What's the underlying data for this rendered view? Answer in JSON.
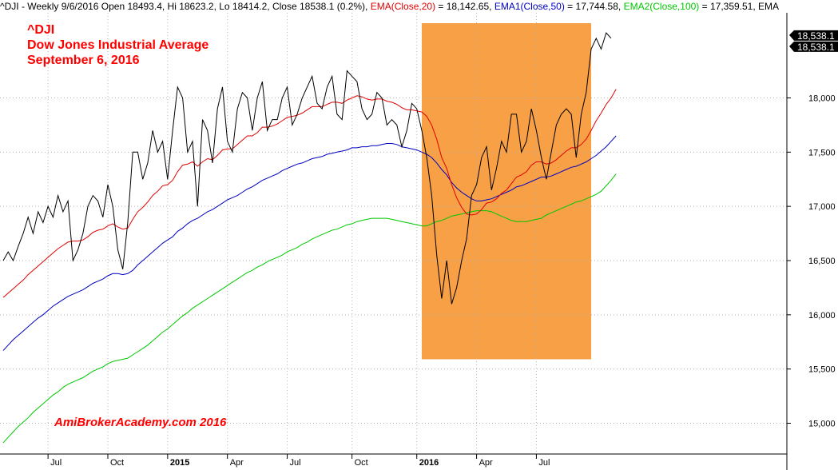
{
  "header": {
    "symbol_info": "^DJI - Weekly 9/6/2016 Open 18493.4, Hi 18623.2, Lo 18414.2, Close 18538.1 (0.2%)",
    "ema20_label": "EMA(Close,20)",
    "ema20_value": " = 18,142.65, ",
    "ema50_label": "EMA1(Close,50)",
    "ema50_value": " = 17,744.58, ",
    "ema100_label": "EMA2(Close,100)",
    "ema100_value": " = 17,359.51, EMA"
  },
  "chart_data": {
    "type": "line",
    "title_lines": [
      "^DJI",
      "Dow Jones Industrial Average",
      "September 6, 2016"
    ],
    "watermark": "AmiBrokerAcademy.com  2016",
    "price_labels": [
      "18,538.1",
      "18,538.1"
    ],
    "ylim": [
      14800,
      18700
    ],
    "y_ticks": [
      {
        "value": 15000,
        "label": "15,000"
      },
      {
        "value": 15500,
        "label": "15,500"
      },
      {
        "value": 16000,
        "label": "16,000"
      },
      {
        "value": 16500,
        "label": "16,500"
      },
      {
        "value": 17000,
        "label": "17,000"
      },
      {
        "value": 17500,
        "label": "17,500"
      },
      {
        "value": 18000,
        "label": "18,000"
      }
    ],
    "x_range": [
      0,
      123
    ],
    "x_ticks": [
      {
        "index": 9,
        "label": "Jul",
        "bold": false
      },
      {
        "index": 21,
        "label": "Oct",
        "bold": false
      },
      {
        "index": 33,
        "label": "2015",
        "bold": true
      },
      {
        "index": 45,
        "label": "Apr",
        "bold": false
      },
      {
        "index": 57,
        "label": "Jul",
        "bold": false
      },
      {
        "index": 70,
        "label": "Oct",
        "bold": false
      },
      {
        "index": 83,
        "label": "2016",
        "bold": true
      },
      {
        "index": 95,
        "label": "Apr",
        "bold": false
      },
      {
        "index": 107,
        "label": "Jul",
        "bold": false
      }
    ],
    "highlight": {
      "x_start": 84,
      "x_end": 118,
      "y_low": 15590,
      "y_high": 18700,
      "color": "#f7a045"
    },
    "colors": {
      "close": "#000000",
      "ema20": "#e00000",
      "ema50": "#0000c0",
      "ema100": "#00c800",
      "grid": "#b4b4b4",
      "label_bg": "#000000"
    },
    "series": [
      {
        "name": "Close",
        "values": [
          16500,
          16580,
          16500,
          16630,
          16750,
          16900,
          16750,
          16950,
          16850,
          17000,
          16900,
          17100,
          16950,
          17050,
          16500,
          16600,
          16750,
          17000,
          17100,
          17050,
          16900,
          17200,
          17000,
          16600,
          16420,
          16850,
          17500,
          17500,
          17250,
          17400,
          17700,
          17500,
          17600,
          17250,
          17700,
          18100,
          18000,
          17500,
          17600,
          17000,
          17800,
          17700,
          17400,
          17900,
          18100,
          17600,
          17500,
          17900,
          18050,
          18000,
          17700,
          18000,
          18150,
          17700,
          17800,
          17800,
          18000,
          18100,
          17750,
          17850,
          18000,
          18100,
          18200,
          17950,
          17900,
          18100,
          18200,
          17850,
          17800,
          18250,
          18200,
          18150,
          17900,
          17800,
          17850,
          18050,
          18000,
          17750,
          17800,
          17750,
          17550,
          17700,
          17950,
          17900,
          17700,
          17450,
          17100,
          16550,
          16150,
          16500,
          16100,
          16250,
          16500,
          16700,
          17100,
          17200,
          17450,
          17550,
          17150,
          17350,
          17600,
          17500,
          17850,
          17850,
          17500,
          17600,
          17900,
          17700,
          17450,
          17250,
          17500,
          17750,
          17850,
          17900,
          17850,
          17450,
          17850,
          18050,
          18450,
          18550,
          18450,
          18600,
          18550
        ]
      },
      {
        "name": "EMA(Close,20)",
        "values": [
          16160,
          16200,
          16240,
          16280,
          16320,
          16370,
          16410,
          16450,
          16490,
          16530,
          16570,
          16610,
          16640,
          16670,
          16680,
          16680,
          16690,
          16720,
          16760,
          16780,
          16790,
          16820,
          16840,
          16810,
          16790,
          16800,
          16880,
          16950,
          16990,
          17040,
          17100,
          17140,
          17190,
          17200,
          17240,
          17320,
          17380,
          17390,
          17410,
          17370,
          17410,
          17440,
          17430,
          17470,
          17520,
          17530,
          17530,
          17570,
          17610,
          17650,
          17650,
          17680,
          17730,
          17730,
          17740,
          17760,
          17790,
          17820,
          17830,
          17840,
          17860,
          17890,
          17920,
          17920,
          17920,
          17940,
          17960,
          17960,
          17950,
          17980,
          18000,
          18020,
          18010,
          17990,
          17980,
          17990,
          17990,
          17970,
          17960,
          17940,
          17910,
          17890,
          17890,
          17880,
          17870,
          17830,
          17750,
          17620,
          17450,
          17350,
          17200,
          17080,
          16990,
          16930,
          16920,
          16930,
          16970,
          17030,
          17040,
          17070,
          17120,
          17150,
          17210,
          17270,
          17290,
          17320,
          17380,
          17410,
          17410,
          17390,
          17400,
          17430,
          17470,
          17510,
          17540,
          17540,
          17570,
          17620,
          17700,
          17790,
          17860,
          17940,
          18000,
          18080
        ]
      },
      {
        "name": "EMA1(Close,50)",
        "values": [
          15670,
          15720,
          15770,
          15810,
          15850,
          15890,
          15930,
          15970,
          16000,
          16040,
          16080,
          16110,
          16140,
          16170,
          16190,
          16210,
          16230,
          16260,
          16290,
          16310,
          16330,
          16360,
          16380,
          16380,
          16370,
          16380,
          16410,
          16460,
          16500,
          16540,
          16580,
          16620,
          16660,
          16690,
          16720,
          16770,
          16800,
          16840,
          16870,
          16890,
          16920,
          16950,
          16970,
          17000,
          17030,
          17060,
          17080,
          17100,
          17130,
          17160,
          17180,
          17210,
          17240,
          17260,
          17280,
          17300,
          17330,
          17350,
          17370,
          17390,
          17400,
          17420,
          17440,
          17450,
          17460,
          17480,
          17490,
          17500,
          17510,
          17520,
          17540,
          17540,
          17550,
          17550,
          17560,
          17560,
          17570,
          17580,
          17580,
          17570,
          17550,
          17540,
          17530,
          17520,
          17500,
          17480,
          17450,
          17400,
          17340,
          17290,
          17220,
          17170,
          17130,
          17100,
          17070,
          17050,
          17050,
          17060,
          17070,
          17090,
          17110,
          17130,
          17150,
          17180,
          17190,
          17210,
          17230,
          17250,
          17270,
          17270,
          17280,
          17300,
          17320,
          17340,
          17360,
          17370,
          17390,
          17410,
          17440,
          17470,
          17510,
          17550,
          17600,
          17650
        ]
      },
      {
        "name": "EMA2(Close,100)",
        "values": [
          14820,
          14870,
          14920,
          14970,
          15010,
          15050,
          15100,
          15140,
          15180,
          15220,
          15260,
          15290,
          15330,
          15360,
          15380,
          15400,
          15420,
          15450,
          15480,
          15500,
          15520,
          15550,
          15570,
          15580,
          15590,
          15600,
          15630,
          15660,
          15690,
          15720,
          15760,
          15800,
          15840,
          15870,
          15910,
          15950,
          15990,
          16020,
          16060,
          16090,
          16120,
          16150,
          16180,
          16210,
          16240,
          16270,
          16300,
          16330,
          16360,
          16390,
          16410,
          16440,
          16460,
          16490,
          16510,
          16530,
          16550,
          16580,
          16600,
          16620,
          16650,
          16670,
          16700,
          16720,
          16740,
          16760,
          16780,
          16790,
          16810,
          16830,
          16840,
          16860,
          16870,
          16880,
          16890,
          16890,
          16890,
          16890,
          16880,
          16870,
          16860,
          16850,
          16840,
          16830,
          16820,
          16820,
          16840,
          16860,
          16870,
          16890,
          16910,
          16920,
          16930,
          16940,
          16950,
          16960,
          16960,
          16960,
          16950,
          16930,
          16910,
          16890,
          16870,
          16860,
          16860,
          16860,
          16870,
          16880,
          16890,
          16920,
          16940,
          16960,
          16980,
          17000,
          17020,
          17040,
          17050,
          17070,
          17090,
          17110,
          17140,
          17190,
          17240,
          17300
        ]
      }
    ]
  }
}
